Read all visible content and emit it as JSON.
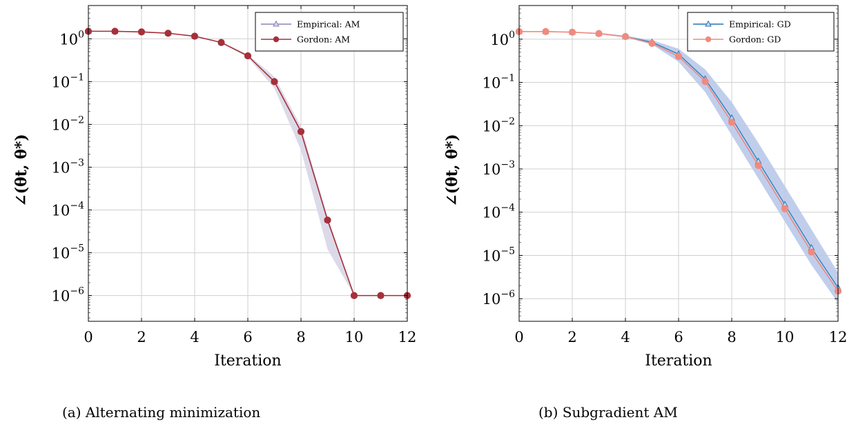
{
  "captions": {
    "left": "(a) Alternating minimization",
    "right": "(b) Subgradient AM"
  },
  "chart_data": [
    {
      "type": "line",
      "yscale": "log",
      "xlabel": "Iteration",
      "ylabel": "∠(θt, θ*)",
      "xlim": [
        0,
        12
      ],
      "ylim": [
        2.5e-07,
        6
      ],
      "xticks": [
        0,
        2,
        4,
        6,
        8,
        10,
        12
      ],
      "yticks": [
        1,
        0.1,
        0.01,
        0.001,
        0.0001,
        1e-05,
        1e-06
      ],
      "ytick_labels": [
        {
          "base": "10",
          "exp": "0"
        },
        {
          "base": "10",
          "exp": "−1"
        },
        {
          "base": "10",
          "exp": "−2"
        },
        {
          "base": "10",
          "exp": "−3"
        },
        {
          "base": "10",
          "exp": "−4"
        },
        {
          "base": "10",
          "exp": "−5"
        },
        {
          "base": "10",
          "exp": "−6"
        }
      ],
      "grid": true,
      "legend_position": "top-right",
      "x": [
        0,
        1,
        2,
        3,
        4,
        5,
        6,
        7,
        8,
        9,
        10,
        11,
        12
      ],
      "series": [
        {
          "name": "Empirical: AM",
          "color": "#8a84bb",
          "marker": "triangle",
          "values": [
            1.5,
            1.5,
            1.45,
            1.35,
            1.15,
            0.82,
            0.4,
            0.1,
            0.0068,
            5.8e-05,
            1e-06,
            1e-06,
            1e-06
          ],
          "band_lower": [
            1.5,
            1.5,
            1.45,
            1.35,
            1.15,
            0.8,
            0.37,
            0.07,
            0.0025,
            1.2e-05,
            1e-06,
            1e-06,
            1e-06
          ],
          "band_upper": [
            1.5,
            1.5,
            1.45,
            1.35,
            1.15,
            0.84,
            0.43,
            0.13,
            0.009,
            7e-05,
            1e-06,
            1e-06,
            1e-06
          ]
        },
        {
          "name": "Gordon: AM",
          "color": "#a6303a",
          "marker": "circle",
          "values": [
            1.5,
            1.5,
            1.45,
            1.35,
            1.15,
            0.82,
            0.4,
            0.1,
            0.0068,
            5.8e-05,
            1e-06,
            1e-06,
            1e-06
          ]
        }
      ]
    },
    {
      "type": "line",
      "yscale": "log",
      "xlabel": "Iteration",
      "ylabel": "∠(θt, θ*)",
      "xlim": [
        0,
        12
      ],
      "ylim": [
        3e-07,
        6
      ],
      "xticks": [
        0,
        2,
        4,
        6,
        8,
        10,
        12
      ],
      "yticks": [
        1,
        0.1,
        0.01,
        0.001,
        0.0001,
        1e-05,
        1e-06
      ],
      "ytick_labels": [
        {
          "base": "10",
          "exp": "0"
        },
        {
          "base": "10",
          "exp": "−1"
        },
        {
          "base": "10",
          "exp": "−2"
        },
        {
          "base": "10",
          "exp": "−3"
        },
        {
          "base": "10",
          "exp": "−4"
        },
        {
          "base": "10",
          "exp": "−5"
        },
        {
          "base": "10",
          "exp": "−6"
        }
      ],
      "grid": true,
      "legend_position": "top-right",
      "x": [
        0,
        1,
        2,
        3,
        4,
        5,
        6,
        7,
        8,
        9,
        10,
        11,
        12
      ],
      "series": [
        {
          "name": "Empirical: GD",
          "color": "#1f77b4",
          "marker": "triangle",
          "values": [
            1.5,
            1.5,
            1.45,
            1.35,
            1.15,
            0.85,
            0.45,
            0.12,
            0.015,
            0.0015,
            0.00015,
            1.5e-05,
            1.8e-06
          ],
          "band_lower": [
            1.5,
            1.5,
            1.45,
            1.3,
            1.1,
            0.75,
            0.3,
            0.06,
            0.006,
            0.0006,
            6e-05,
            6e-06,
            8e-07
          ],
          "band_upper": [
            1.5,
            1.5,
            1.45,
            1.4,
            1.2,
            0.95,
            0.6,
            0.2,
            0.035,
            0.004,
            0.0004,
            4e-05,
            4e-06
          ],
          "band_color": "#b9c9ea"
        },
        {
          "name": "Gordon: GD",
          "color": "#f08a7e",
          "marker": "circle",
          "values": [
            1.5,
            1.5,
            1.45,
            1.35,
            1.15,
            0.8,
            0.4,
            0.105,
            0.012,
            0.0012,
            0.00012,
            1.2e-05,
            1.5e-06
          ]
        }
      ]
    }
  ]
}
